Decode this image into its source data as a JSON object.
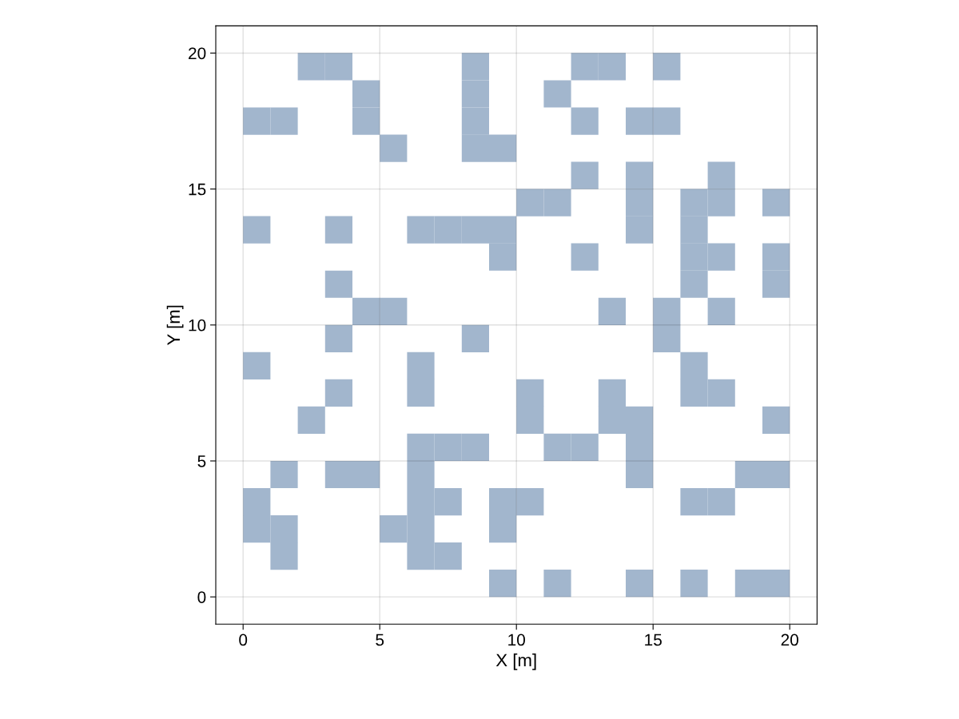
{
  "chart_data": {
    "type": "scatter",
    "xlabel": "X [m]",
    "ylabel": "Y [m]",
    "marker": "square",
    "grid": true,
    "xlim": [
      -1,
      21
    ],
    "ylim": [
      -1,
      21
    ],
    "xticks": [
      0,
      5,
      10,
      15,
      20
    ],
    "yticks": [
      0,
      5,
      10,
      15,
      20
    ],
    "series": [
      {
        "color": "#a2b6cd",
        "x": [
          2.5,
          3.5,
          8.5,
          12.5,
          13.5,
          15.5,
          4.5,
          8.5,
          11.5,
          0.5,
          1.5,
          4.5,
          8.5,
          12.5,
          14.5,
          15.5,
          5.5,
          8.5,
          9.5,
          12.5,
          14.5,
          17.5,
          10.5,
          11.5,
          14.5,
          16.5,
          17.5,
          19.5,
          0.5,
          3.5,
          6.5,
          7.5,
          8.5,
          9.5,
          14.5,
          16.5,
          9.5,
          12.5,
          16.5,
          17.5,
          19.5,
          3.5,
          16.5,
          19.5,
          4.5,
          5.5,
          13.5,
          15.5,
          17.5,
          3.5,
          8.5,
          15.5,
          0.5,
          6.5,
          16.5,
          3.5,
          6.5,
          10.5,
          13.5,
          16.5,
          17.5,
          2.5,
          10.5,
          13.5,
          14.5,
          19.5,
          6.5,
          7.5,
          8.5,
          11.5,
          12.5,
          14.5,
          1.5,
          3.5,
          4.5,
          6.5,
          14.5,
          18.5,
          19.5,
          0.5,
          6.5,
          7.5,
          9.5,
          10.5,
          16.5,
          17.5,
          0.5,
          1.5,
          5.5,
          6.5,
          9.5,
          1.5,
          6.5,
          7.5,
          9.5,
          11.5,
          14.5,
          16.5,
          18.5,
          19.5
        ],
        "values": [
          19.5,
          19.5,
          19.5,
          19.5,
          19.5,
          19.5,
          18.5,
          18.5,
          18.5,
          17.5,
          17.5,
          17.5,
          17.5,
          17.5,
          17.5,
          17.5,
          16.5,
          16.5,
          16.5,
          15.5,
          15.5,
          15.5,
          14.5,
          14.5,
          14.5,
          14.5,
          14.5,
          14.5,
          13.5,
          13.5,
          13.5,
          13.5,
          13.5,
          13.5,
          13.5,
          13.5,
          12.5,
          12.5,
          12.5,
          12.5,
          12.5,
          11.5,
          11.5,
          11.5,
          10.5,
          10.5,
          10.5,
          10.5,
          10.5,
          9.5,
          9.5,
          9.5,
          8.5,
          8.5,
          8.5,
          7.5,
          7.5,
          7.5,
          7.5,
          7.5,
          7.5,
          6.5,
          6.5,
          6.5,
          6.5,
          6.5,
          5.5,
          5.5,
          5.5,
          5.5,
          5.5,
          5.5,
          4.5,
          4.5,
          4.5,
          4.5,
          4.5,
          4.5,
          4.5,
          3.5,
          3.5,
          3.5,
          3.5,
          3.5,
          3.5,
          3.5,
          2.5,
          2.5,
          2.5,
          2.5,
          2.5,
          1.5,
          1.5,
          1.5,
          0.5,
          0.5,
          0.5,
          0.5,
          0.5,
          0.5
        ]
      }
    ]
  }
}
